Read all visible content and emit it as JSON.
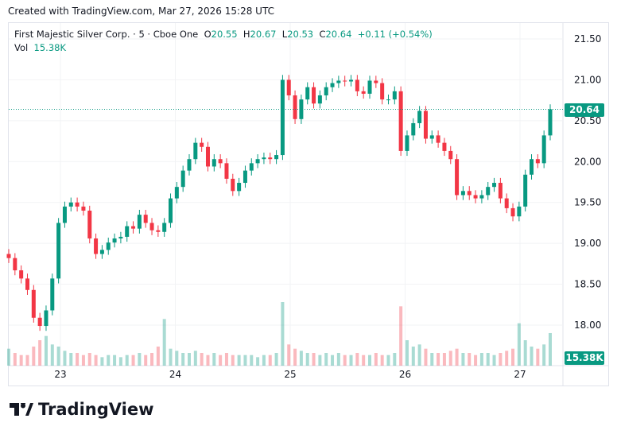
{
  "credit": "Created with TradingView.com, Mar 27, 2026 15:28 UTC",
  "legend": {
    "symbol": "First Majestic Silver Corp. · 5 · Cboe One",
    "o_label": "O",
    "o": "20.55",
    "h_label": "H",
    "h": "20.67",
    "l_label": "L",
    "l": "20.53",
    "c_label": "C",
    "c": "20.64",
    "change": "+0.11 (+0.54%)",
    "vol_label": "Vol",
    "vol": "15.38K"
  },
  "price_tag": "20.64",
  "volume_tag": "15.38K",
  "logo": "TradingView",
  "colors": {
    "up": "#089981",
    "down": "#f23645"
  },
  "chart_data": {
    "type": "candlestick",
    "title": "First Majestic Silver Corp. · 5 · Cboe One",
    "ylim": [
      17.8,
      21.7
    ],
    "y_ticks": [
      "21.50",
      "21.00",
      "20.50",
      "20.00",
      "19.50",
      "19.00",
      "18.50",
      "18.00"
    ],
    "x_ticks": [
      {
        "label": "23",
        "day": 23
      },
      {
        "label": "24",
        "day": 24
      },
      {
        "label": "25",
        "day": 25
      },
      {
        "label": "26",
        "day": 26
      },
      {
        "label": "27",
        "day": 27
      }
    ],
    "x_range": [
      22.54,
      27.25
    ],
    "last_price": 20.64,
    "closes": [
      18.82,
      18.67,
      18.57,
      18.43,
      18.09,
      17.99,
      18.18,
      18.57,
      19.25,
      19.45,
      19.5,
      19.45,
      19.4,
      19.06,
      18.87,
      18.92,
      19.01,
      19.06,
      19.08,
      19.21,
      19.18,
      19.35,
      19.25,
      19.16,
      19.14,
      19.25,
      19.55,
      19.69,
      19.89,
      20.03,
      20.23,
      20.18,
      19.94,
      20.03,
      19.98,
      19.79,
      19.64,
      19.74,
      19.89,
      19.98,
      20.03,
      20.05,
      20.03,
      20.08,
      21.0,
      20.81,
      20.52,
      20.76,
      20.91,
      20.71,
      20.81,
      20.91,
      20.96,
      20.99,
      20.98,
      21.0,
      20.86,
      20.83,
      20.99,
      20.96,
      20.76,
      20.76,
      20.86,
      20.13,
      20.32,
      20.47,
      20.62,
      20.28,
      20.32,
      20.23,
      20.13,
      20.03,
      19.59,
      19.64,
      19.59,
      19.55,
      19.59,
      19.69,
      19.74,
      19.55,
      19.43,
      19.33,
      19.45,
      19.84,
      20.03,
      19.98,
      20.32,
      20.64
    ],
    "volumes_k": [
      8,
      6,
      5,
      5,
      9,
      12,
      14,
      10,
      9,
      7,
      6,
      6,
      5,
      6,
      5,
      4,
      5,
      5,
      4,
      5,
      5,
      6,
      5,
      6,
      9,
      22,
      8,
      7,
      6,
      6,
      7,
      6,
      5,
      6,
      5,
      6,
      5,
      5,
      5,
      5,
      4,
      5,
      5,
      6,
      30,
      10,
      8,
      7,
      6,
      6,
      5,
      6,
      5,
      6,
      5,
      5,
      6,
      5,
      5,
      6,
      5,
      5,
      6,
      28,
      12,
      9,
      10,
      8,
      6,
      6,
      6,
      7,
      8,
      6,
      6,
      5,
      6,
      6,
      5,
      6,
      7,
      8,
      20,
      12,
      9,
      8,
      10,
      15.38
    ]
  }
}
